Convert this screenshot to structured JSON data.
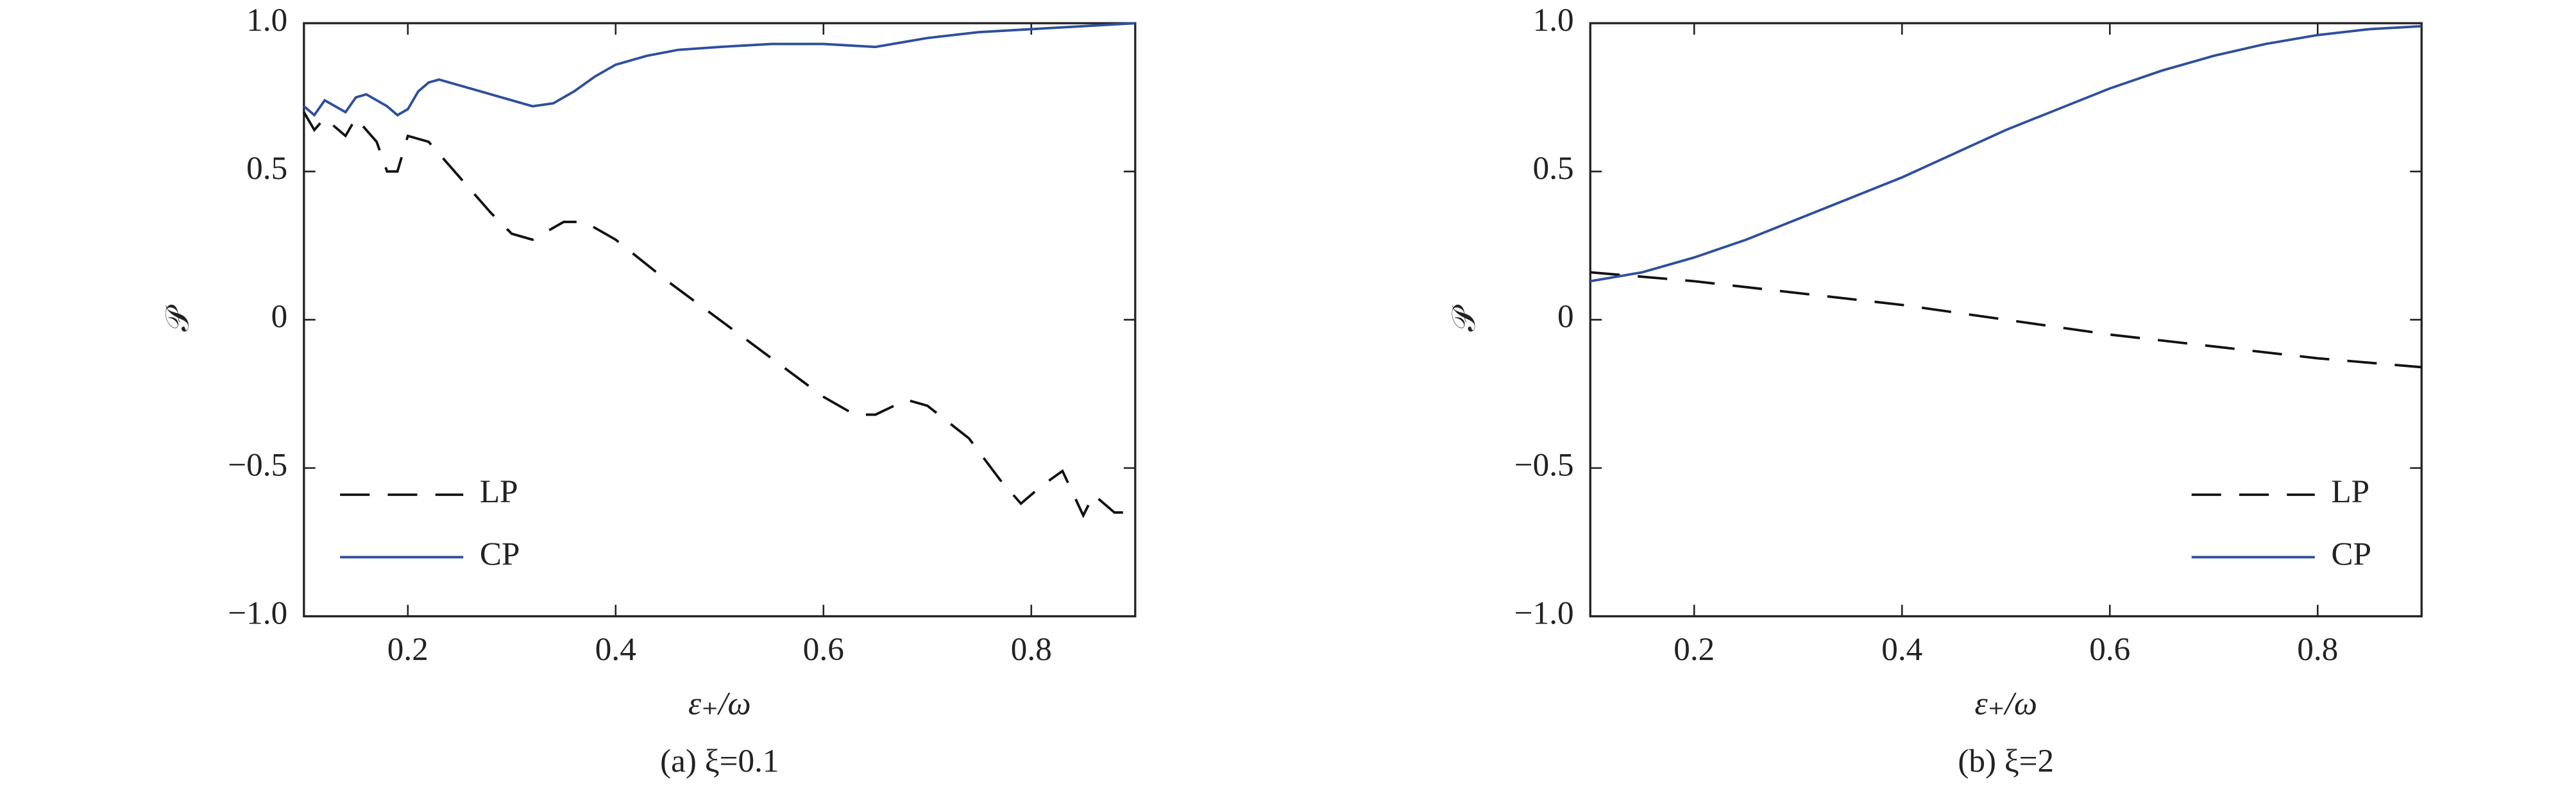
{
  "chart_data": [
    {
      "type": "line",
      "caption": "(a) ξ=0.1",
      "xlabel": "ε₊/ω",
      "ylabel": "𝒫",
      "xlim": [
        0.1,
        0.9
      ],
      "ylim": [
        -1,
        1
      ],
      "xticks": [
        0.2,
        0.4,
        0.6,
        0.8
      ],
      "yticks": [
        {
          "value": -1,
          "label": "−1.0"
        },
        {
          "value": -0.5,
          "label": "−0.5"
        },
        0,
        0.5,
        {
          "value": 1,
          "label": "1.0"
        }
      ],
      "legend": "lower-left",
      "series": [
        {
          "name": "LP",
          "color": "#111111",
          "style": "dashed",
          "x": [
            0.1,
            0.11,
            0.12,
            0.14,
            0.15,
            0.17,
            0.18,
            0.19,
            0.2,
            0.22,
            0.25,
            0.28,
            0.3,
            0.32,
            0.35,
            0.37,
            0.4,
            0.45,
            0.5,
            0.55,
            0.6,
            0.63,
            0.65,
            0.68,
            0.7,
            0.74,
            0.77,
            0.79,
            0.81,
            0.83,
            0.85,
            0.86,
            0.88,
            0.9
          ],
          "values": [
            0.7,
            0.64,
            0.68,
            0.62,
            0.68,
            0.6,
            0.5,
            0.5,
            0.62,
            0.6,
            0.48,
            0.36,
            0.29,
            0.27,
            0.33,
            0.33,
            0.27,
            0.13,
            0.0,
            -0.13,
            -0.26,
            -0.32,
            -0.32,
            -0.27,
            -0.29,
            -0.4,
            -0.54,
            -0.62,
            -0.56,
            -0.51,
            -0.66,
            -0.59,
            -0.65,
            -0.65
          ]
        },
        {
          "name": "CP",
          "color": "#2f4f9c",
          "style": "solid",
          "x": [
            0.1,
            0.11,
            0.12,
            0.14,
            0.15,
            0.16,
            0.18,
            0.19,
            0.2,
            0.21,
            0.22,
            0.23,
            0.25,
            0.28,
            0.3,
            0.32,
            0.34,
            0.36,
            0.38,
            0.4,
            0.43,
            0.46,
            0.5,
            0.55,
            0.6,
            0.65,
            0.7,
            0.75,
            0.8,
            0.85,
            0.9
          ],
          "values": [
            0.72,
            0.69,
            0.74,
            0.7,
            0.75,
            0.76,
            0.72,
            0.69,
            0.71,
            0.77,
            0.8,
            0.81,
            0.79,
            0.76,
            0.74,
            0.72,
            0.73,
            0.77,
            0.82,
            0.86,
            0.89,
            0.91,
            0.92,
            0.93,
            0.93,
            0.92,
            0.95,
            0.97,
            0.98,
            0.99,
            1.0
          ]
        }
      ]
    },
    {
      "type": "line",
      "caption": "(b) ξ=2",
      "xlabel": "ε₊/ω",
      "ylabel": "𝒫",
      "xlim": [
        0.1,
        0.9
      ],
      "ylim": [
        -1,
        1
      ],
      "xticks": [
        0.2,
        0.4,
        0.6,
        0.8
      ],
      "yticks": [
        {
          "value": -1,
          "label": "−1.0"
        },
        {
          "value": -0.5,
          "label": "−0.5"
        },
        0,
        0.5,
        {
          "value": 1,
          "label": "1.0"
        }
      ],
      "legend": "lower-right",
      "series": [
        {
          "name": "LP",
          "color": "#111111",
          "style": "dashed",
          "x": [
            0.1,
            0.2,
            0.3,
            0.4,
            0.5,
            0.6,
            0.7,
            0.8,
            0.9
          ],
          "values": [
            0.16,
            0.13,
            0.09,
            0.05,
            0.0,
            -0.05,
            -0.09,
            -0.13,
            -0.16
          ]
        },
        {
          "name": "CP",
          "color": "#2f4f9c",
          "style": "solid",
          "x": [
            0.1,
            0.15,
            0.2,
            0.25,
            0.3,
            0.35,
            0.4,
            0.45,
            0.5,
            0.55,
            0.6,
            0.65,
            0.7,
            0.75,
            0.8,
            0.85,
            0.9
          ],
          "values": [
            0.13,
            0.16,
            0.21,
            0.27,
            0.34,
            0.41,
            0.48,
            0.56,
            0.64,
            0.71,
            0.78,
            0.84,
            0.89,
            0.93,
            0.96,
            0.98,
            0.99
          ]
        }
      ]
    }
  ]
}
